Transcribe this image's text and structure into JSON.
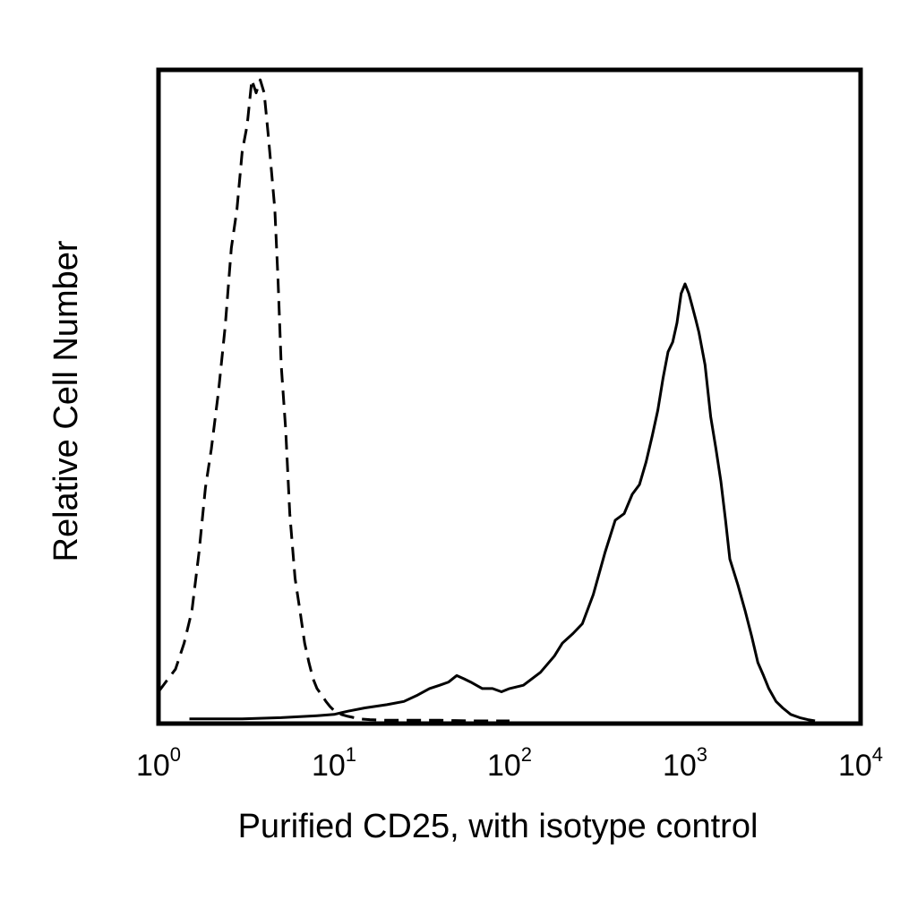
{
  "chart_data": {
    "type": "line",
    "title": "",
    "xlabel": "Purified CD25, with isotype control",
    "ylabel": "Relative Cell Number",
    "x_scale": "log",
    "xlim": [
      1,
      10000
    ],
    "ylim": [
      0,
      100
    ],
    "grid": false,
    "legend": "none",
    "x_ticks": [
      {
        "base": "10",
        "exp": "0",
        "value": 1
      },
      {
        "base": "10",
        "exp": "1",
        "value": 10
      },
      {
        "base": "10",
        "exp": "2",
        "value": 100
      },
      {
        "base": "10",
        "exp": "3",
        "value": 1000
      },
      {
        "base": "10",
        "exp": "4",
        "value": 10000
      }
    ],
    "series": [
      {
        "style": "dashed",
        "color": "#000000",
        "x": [
          1.0,
          1.1,
          1.25,
          1.4,
          1.55,
          1.7,
          1.85,
          2.0,
          2.2,
          2.4,
          2.6,
          2.8,
          3.0,
          3.2,
          3.4,
          3.6,
          3.8,
          4.0,
          4.2,
          4.4,
          4.6,
          4.8,
          5.0,
          5.3,
          5.6,
          6.0,
          6.4,
          6.8,
          7.2,
          7.6,
          8.0,
          8.5,
          9.0,
          9.5,
          10.0,
          11.0,
          12.0,
          13.0,
          14.0,
          16.0,
          20.0,
          30.0,
          40.0,
          60.0,
          100.0
        ],
        "y": [
          4.5,
          6.0,
          8.0,
          12.0,
          17.0,
          26.0,
          36.0,
          42.0,
          51.0,
          61.0,
          73.0,
          79.0,
          88.0,
          92.0,
          99.0,
          97.0,
          99.0,
          97.0,
          91.0,
          85.0,
          79.0,
          68.0,
          55.0,
          45.0,
          32.0,
          22.0,
          17.0,
          12.0,
          9.0,
          6.5,
          5.0,
          4.0,
          3.0,
          2.2,
          1.6,
          1.0,
          0.7,
          0.5,
          0.3,
          0.2,
          0.1,
          0.1,
          0.1,
          0.0,
          0.0
        ]
      },
      {
        "style": "solid",
        "color": "#000000",
        "x": [
          1.5,
          3.0,
          5.0,
          8.0,
          10.0,
          12.0,
          15.0,
          20.0,
          25.0,
          30.0,
          35.0,
          40.0,
          45.0,
          50.0,
          55.0,
          60.0,
          70.0,
          80.0,
          90.0,
          100.0,
          120.0,
          150.0,
          180.0,
          200.0,
          230.0,
          260.0,
          300.0,
          350.0,
          400.0,
          450.0,
          500.0,
          550.0,
          600.0,
          650.0,
          700.0,
          750.0,
          800.0,
          850.0,
          900.0,
          950.0,
          1000.0,
          1050.0,
          1100.0,
          1150.0,
          1200.0,
          1300.0,
          1400.0,
          1500.0,
          1600.0,
          1700.0,
          1800.0,
          2000.0,
          2200.0,
          2400.0,
          2600.0,
          2800.0,
          3000.0,
          3300.0,
          3600.0,
          4000.0,
          4500.0,
          5000.0,
          5500.0
        ],
        "y": [
          0.3,
          0.3,
          0.5,
          0.8,
          1.0,
          1.5,
          2.0,
          2.5,
          3.0,
          4.0,
          5.0,
          5.5,
          6.0,
          7.0,
          6.5,
          6.0,
          5.0,
          5.0,
          4.5,
          5.0,
          5.5,
          7.5,
          10.0,
          12.0,
          13.5,
          15.0,
          19.5,
          26.0,
          31.0,
          32.0,
          35.0,
          36.5,
          40.0,
          44.0,
          48.0,
          53.0,
          57.0,
          58.5,
          61.5,
          66.0,
          67.5,
          66.0,
          64.0,
          62.0,
          60.0,
          55.0,
          47.0,
          42.0,
          37.0,
          31.0,
          25.0,
          21.0,
          17.0,
          13.0,
          9.0,
          7.0,
          5.0,
          3.0,
          2.0,
          1.0,
          0.5,
          0.2,
          0.0
        ]
      }
    ]
  }
}
